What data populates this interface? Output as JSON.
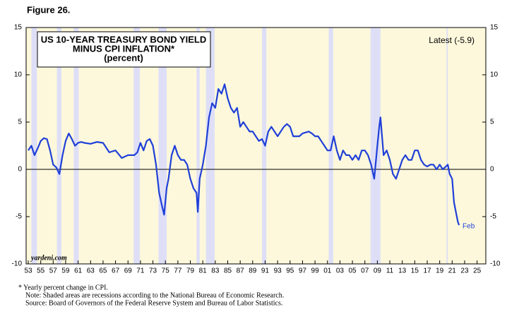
{
  "figure_label": "Figure 26.",
  "chart_data": {
    "type": "line",
    "title": [
      "US 10-YEAR TREASURY BOND YIELD",
      "MINUS CPI INFLATION*",
      "(percent)"
    ],
    "annotations": {
      "latest": "Latest (-5.9)",
      "end_label": "Feb",
      "source_mark": "yardeni.com"
    },
    "color": "#1f3fd8",
    "shade_color": "#dedff7",
    "background": "#fdf8dc",
    "xlim": [
      1952.66,
      2026.4
    ],
    "ylim": [
      -10,
      15
    ],
    "yticks": [
      -10,
      -5,
      0,
      5,
      10,
      15
    ],
    "xticks": [
      {
        "value": 1953,
        "label": "53"
      },
      {
        "value": 1955,
        "label": "55"
      },
      {
        "value": 1957,
        "label": "57"
      },
      {
        "value": 1959,
        "label": "59"
      },
      {
        "value": 1961,
        "label": "61"
      },
      {
        "value": 1963,
        "label": "63"
      },
      {
        "value": 1965,
        "label": "65"
      },
      {
        "value": 1967,
        "label": "67"
      },
      {
        "value": 1969,
        "label": "69"
      },
      {
        "value": 1971,
        "label": "71"
      },
      {
        "value": 1973,
        "label": "73"
      },
      {
        "value": 1975,
        "label": "75"
      },
      {
        "value": 1977,
        "label": "77"
      },
      {
        "value": 1979,
        "label": "79"
      },
      {
        "value": 1981,
        "label": "81"
      },
      {
        "value": 1983,
        "label": "83"
      },
      {
        "value": 1985,
        "label": "85"
      },
      {
        "value": 1987,
        "label": "87"
      },
      {
        "value": 1989,
        "label": "89"
      },
      {
        "value": 1991,
        "label": "91"
      },
      {
        "value": 1993,
        "label": "93"
      },
      {
        "value": 1995,
        "label": "95"
      },
      {
        "value": 1997,
        "label": "97"
      },
      {
        "value": 1999,
        "label": "99"
      },
      {
        "value": 2001,
        "label": "01"
      },
      {
        "value": 2003,
        "label": "03"
      },
      {
        "value": 2005,
        "label": "05"
      },
      {
        "value": 2007,
        "label": "07"
      },
      {
        "value": 2009,
        "label": "09"
      },
      {
        "value": 2011,
        "label": "11"
      },
      {
        "value": 2013,
        "label": "13"
      },
      {
        "value": 2015,
        "label": "15"
      },
      {
        "value": 2017,
        "label": "17"
      },
      {
        "value": 2019,
        "label": "19"
      },
      {
        "value": 2021,
        "label": "21"
      },
      {
        "value": 2023,
        "label": "23"
      },
      {
        "value": 2025,
        "label": "25"
      }
    ],
    "shaded_periods": [
      [
        1953.5,
        1954.4
      ],
      [
        1957.6,
        1958.3
      ],
      [
        1960.3,
        1961.1
      ],
      [
        1969.9,
        1970.9
      ],
      [
        1973.9,
        1975.2
      ],
      [
        1980.0,
        1980.5
      ],
      [
        1981.5,
        1982.9
      ],
      [
        1990.5,
        1991.2
      ],
      [
        2001.2,
        2001.9
      ],
      [
        2007.9,
        2009.5
      ],
      [
        2020.1,
        2020.3
      ]
    ],
    "x": [
      1953.0,
      1953.5,
      1954.0,
      1954.5,
      1955.0,
      1955.5,
      1956.0,
      1956.5,
      1957.0,
      1957.5,
      1958.0,
      1958.5,
      1959.0,
      1959.5,
      1960.0,
      1960.5,
      1961.0,
      1961.5,
      1962.0,
      1963.0,
      1964.0,
      1965.0,
      1966.0,
      1967.0,
      1968.0,
      1969.0,
      1970.0,
      1970.5,
      1971.0,
      1971.5,
      1972.0,
      1972.5,
      1973.0,
      1973.5,
      1974.0,
      1974.5,
      1974.8,
      1975.2,
      1975.5,
      1976.0,
      1976.5,
      1977.0,
      1977.5,
      1978.0,
      1978.5,
      1979.0,
      1979.5,
      1980.0,
      1980.2,
      1980.5,
      1981.0,
      1981.5,
      1982.0,
      1982.5,
      1983.0,
      1983.5,
      1984.0,
      1984.5,
      1985.0,
      1985.5,
      1986.0,
      1986.5,
      1987.0,
      1987.5,
      1988.0,
      1988.5,
      1989.0,
      1989.5,
      1990.0,
      1990.5,
      1991.0,
      1991.5,
      1992.0,
      1992.5,
      1993.0,
      1994.0,
      1994.5,
      1995.0,
      1995.5,
      1996.0,
      1996.5,
      1997.0,
      1998.0,
      1998.5,
      1999.0,
      1999.5,
      2000.0,
      2000.5,
      2001.0,
      2001.5,
      2002.0,
      2002.5,
      2003.0,
      2003.5,
      2004.0,
      2004.5,
      2005.0,
      2005.5,
      2006.0,
      2006.5,
      2007.0,
      2007.5,
      2008.0,
      2008.5,
      2009.0,
      2009.3,
      2009.5,
      2010.0,
      2010.5,
      2011.0,
      2011.5,
      2012.0,
      2012.5,
      2013.0,
      2013.5,
      2014.0,
      2014.5,
      2015.0,
      2015.5,
      2016.0,
      2016.5,
      2017.0,
      2017.5,
      2018.0,
      2018.5,
      2019.0,
      2019.5,
      2020.0,
      2020.3,
      2020.6,
      2021.0,
      2021.3,
      2021.6,
      2021.9,
      2022.1
    ],
    "values": [
      2.0,
      2.5,
      1.5,
      2.2,
      3.0,
      3.3,
      3.2,
      2.0,
      0.5,
      0.2,
      -0.5,
      1.5,
      3.0,
      3.8,
      3.2,
      2.5,
      2.8,
      2.9,
      2.8,
      2.7,
      2.9,
      2.8,
      1.8,
      2.0,
      1.2,
      1.5,
      1.5,
      1.8,
      2.8,
      2.0,
      3.0,
      3.2,
      2.5,
      0.5,
      -2.5,
      -4.0,
      -4.8,
      -2.0,
      -1.0,
      1.5,
      2.5,
      1.5,
      1.0,
      1.0,
      0.5,
      -1.0,
      -2.0,
      -2.5,
      -4.5,
      -1.0,
      0.5,
      2.5,
      5.5,
      7.0,
      6.5,
      8.5,
      8.0,
      9.0,
      7.5,
      6.5,
      6.0,
      6.5,
      4.5,
      5.0,
      4.5,
      4.0,
      4.0,
      3.5,
      3.0,
      3.2,
      2.5,
      4.0,
      4.5,
      4.0,
      3.5,
      4.5,
      4.8,
      4.5,
      3.5,
      3.5,
      3.5,
      3.8,
      4.0,
      3.8,
      3.5,
      3.5,
      3.0,
      2.5,
      2.0,
      2.0,
      3.5,
      2.0,
      1.0,
      2.0,
      1.5,
      1.5,
      1.0,
      1.5,
      1.0,
      2.0,
      2.0,
      1.5,
      0.5,
      -1.0,
      2.5,
      4.5,
      5.5,
      1.5,
      2.0,
      1.0,
      -0.5,
      -1.0,
      0.0,
      1.0,
      1.5,
      1.0,
      1.0,
      2.0,
      2.0,
      1.0,
      0.5,
      0.3,
      0.5,
      0.5,
      0.0,
      0.5,
      0.0,
      0.3,
      0.5,
      -0.5,
      -1.0,
      -3.5,
      -4.5,
      -5.5,
      -5.9
    ]
  },
  "notes": [
    "*  Yearly percent change in CPI.",
    "Note: Shaded areas are recessions according to the National Bureau of Economic Research.",
    "Source: Board of Governors of the Federal Reserve System and Bureau of Labor Statistics."
  ]
}
